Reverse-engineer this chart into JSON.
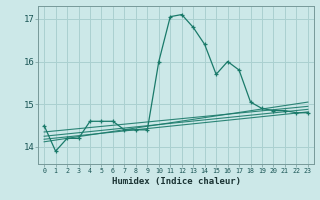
{
  "title": "",
  "xlabel": "Humidex (Indice chaleur)",
  "ylabel": "",
  "bg_color": "#cce8e8",
  "grid_color": "#aad0d0",
  "line_color": "#1a7a6a",
  "ylim": [
    13.6,
    17.3
  ],
  "xlim": [
    -0.5,
    23.5
  ],
  "yticks": [
    14,
    15,
    16,
    17
  ],
  "xtick_labels": [
    "0",
    "1",
    "2",
    "3",
    "4",
    "5",
    "6",
    "7",
    "8",
    "9",
    "10",
    "11",
    "12",
    "13",
    "14",
    "15",
    "16",
    "17",
    "18",
    "19",
    "20",
    "21",
    "22",
    "23"
  ],
  "main_series": {
    "x": [
      0,
      1,
      2,
      3,
      4,
      5,
      6,
      7,
      8,
      9,
      10,
      11,
      12,
      13,
      14,
      15,
      16,
      17,
      18,
      19,
      20,
      21,
      22,
      23
    ],
    "y": [
      14.5,
      13.9,
      14.2,
      14.2,
      14.6,
      14.6,
      14.6,
      14.4,
      14.4,
      14.4,
      16.0,
      17.05,
      17.1,
      16.8,
      16.4,
      15.7,
      16.0,
      15.8,
      15.05,
      14.9,
      14.85,
      14.85,
      14.8,
      14.8
    ]
  },
  "flat_series": [
    {
      "x": [
        0,
        23
      ],
      "y": [
        14.35,
        14.95
      ]
    },
    {
      "x": [
        0,
        23
      ],
      "y": [
        14.25,
        14.88
      ]
    },
    {
      "x": [
        0,
        23
      ],
      "y": [
        14.18,
        14.82
      ]
    },
    {
      "x": [
        0,
        23
      ],
      "y": [
        14.12,
        15.05
      ]
    }
  ]
}
